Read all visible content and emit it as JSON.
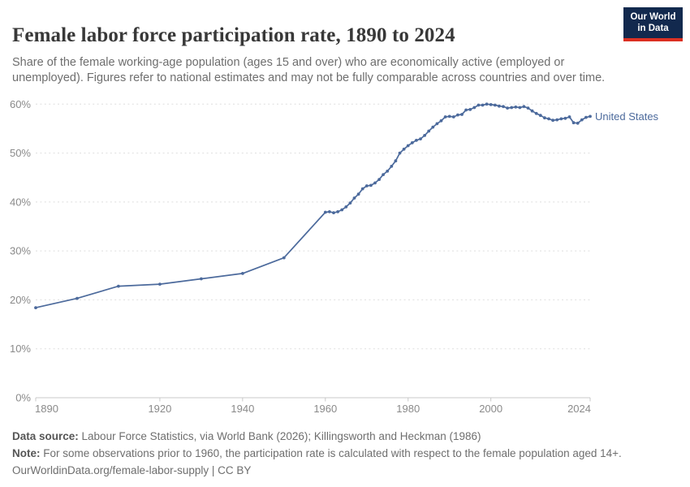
{
  "header": {
    "title": "Female labor force participation rate, 1890 to 2024",
    "subtitle": "Share of the female working-age population (ages 15 and over) who are economically active (employed or unemployed). Figures refer to national estimates and may not be fully comparable across countries and over time."
  },
  "logo": {
    "line1": "Our World",
    "line2": "in Data",
    "bg_color": "#12294e",
    "accent_color": "#dc3022"
  },
  "chart_data": {
    "type": "line",
    "title": "Female labor force participation rate, 1890 to 2024",
    "xlabel": "",
    "ylabel": "",
    "xlim": [
      1890,
      2024
    ],
    "ylim": [
      0,
      60
    ],
    "x_ticks": [
      1890,
      1920,
      1940,
      1960,
      1980,
      2000,
      2024
    ],
    "y_ticks": [
      0,
      10,
      20,
      30,
      40,
      50,
      60
    ],
    "y_tick_suffix": "%",
    "grid": "dashed horizontal gridlines",
    "legend_position": "right-of-line entity label",
    "series": [
      {
        "name": "United States",
        "color": "#4c6a9c",
        "points": [
          [
            1890,
            18.4
          ],
          [
            1900,
            20.3
          ],
          [
            1910,
            22.8
          ],
          [
            1920,
            23.2
          ],
          [
            1930,
            24.3
          ],
          [
            1940,
            25.4
          ],
          [
            1950,
            28.6
          ],
          [
            1960,
            37.9
          ],
          [
            1961,
            38.0
          ],
          [
            1962,
            37.8
          ],
          [
            1963,
            38.0
          ],
          [
            1964,
            38.4
          ],
          [
            1965,
            39.0
          ],
          [
            1966,
            39.8
          ],
          [
            1967,
            40.8
          ],
          [
            1968,
            41.6
          ],
          [
            1969,
            42.7
          ],
          [
            1970,
            43.3
          ],
          [
            1971,
            43.4
          ],
          [
            1972,
            43.9
          ],
          [
            1973,
            44.6
          ],
          [
            1974,
            45.6
          ],
          [
            1975,
            46.3
          ],
          [
            1976,
            47.3
          ],
          [
            1977,
            48.4
          ],
          [
            1978,
            50.0
          ],
          [
            1979,
            50.8
          ],
          [
            1980,
            51.5
          ],
          [
            1981,
            52.1
          ],
          [
            1982,
            52.6
          ],
          [
            1983,
            52.9
          ],
          [
            1984,
            53.6
          ],
          [
            1985,
            54.5
          ],
          [
            1986,
            55.3
          ],
          [
            1987,
            56.0
          ],
          [
            1988,
            56.6
          ],
          [
            1989,
            57.4
          ],
          [
            1990,
            57.5
          ],
          [
            1991,
            57.4
          ],
          [
            1992,
            57.8
          ],
          [
            1993,
            57.9
          ],
          [
            1994,
            58.8
          ],
          [
            1995,
            58.9
          ],
          [
            1996,
            59.3
          ],
          [
            1997,
            59.8
          ],
          [
            1998,
            59.8
          ],
          [
            1999,
            60.0
          ],
          [
            2000,
            59.9
          ],
          [
            2001,
            59.8
          ],
          [
            2002,
            59.6
          ],
          [
            2003,
            59.5
          ],
          [
            2004,
            59.2
          ],
          [
            2005,
            59.3
          ],
          [
            2006,
            59.4
          ],
          [
            2007,
            59.3
          ],
          [
            2008,
            59.5
          ],
          [
            2009,
            59.2
          ],
          [
            2010,
            58.6
          ],
          [
            2011,
            58.1
          ],
          [
            2012,
            57.7
          ],
          [
            2013,
            57.2
          ],
          [
            2014,
            57.0
          ],
          [
            2015,
            56.7
          ],
          [
            2016,
            56.8
          ],
          [
            2017,
            57.0
          ],
          [
            2018,
            57.1
          ],
          [
            2019,
            57.4
          ],
          [
            2020,
            56.2
          ],
          [
            2021,
            56.1
          ],
          [
            2022,
            56.8
          ],
          [
            2023,
            57.3
          ],
          [
            2024,
            57.5
          ]
        ]
      }
    ]
  },
  "footer": {
    "datasource_label": "Data source:",
    "datasource_text": " Labour Force Statistics, via World Bank (2026); Killingsworth and Heckman (1986)",
    "note_label": "Note:",
    "note_text": " For some observations prior to 1960, the participation rate is calculated with respect to the female population aged 14+.",
    "attribution": "OurWorldinData.org/female-labor-supply | CC BY"
  }
}
